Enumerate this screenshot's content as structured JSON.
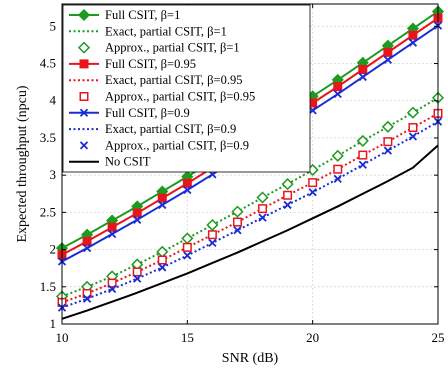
{
  "chart_data": {
    "type": "line",
    "xlabel": "SNR (dB)",
    "ylabel": "Expected throughput (npcu)",
    "xlim": [
      10,
      25
    ],
    "ylim": [
      1,
      5.3
    ],
    "x_ticks": [
      10,
      15,
      20,
      25
    ],
    "y_ticks": [
      1,
      1.5,
      2,
      2.5,
      3,
      3.5,
      4,
      4.5,
      5
    ],
    "grid": true,
    "legend_position": "top-left",
    "x": [
      10,
      11,
      12,
      13,
      14,
      15,
      16,
      17,
      18,
      19,
      20,
      21,
      22,
      23,
      24,
      25
    ],
    "series": [
      {
        "name": "Full CSIT, β=1",
        "color": "#1e9a1e",
        "style": "solid",
        "marker": "diamond",
        "values": [
          2.02,
          2.2,
          2.39,
          2.58,
          2.78,
          2.98,
          3.19,
          3.4,
          3.62,
          3.84,
          4.06,
          4.28,
          4.51,
          4.74,
          4.97,
          5.2
        ]
      },
      {
        "name": "Exact, partial CSIT, β=1",
        "color": "#1e9a1e",
        "style": "dotted",
        "marker": "none",
        "values": [
          1.37,
          1.5,
          1.64,
          1.8,
          1.97,
          2.15,
          2.33,
          2.51,
          2.7,
          2.88,
          3.07,
          3.26,
          3.46,
          3.65,
          3.84,
          4.04
        ]
      },
      {
        "name": "Approx., partial CSIT, β=1",
        "color": "#1e9a1e",
        "style": "none",
        "marker": "open-diamond",
        "values": [
          1.37,
          1.5,
          1.64,
          1.8,
          1.97,
          2.15,
          2.33,
          2.51,
          2.7,
          2.88,
          3.07,
          3.26,
          3.46,
          3.65,
          3.84,
          4.04
        ]
      },
      {
        "name": "Full CSIT, β=0.95",
        "color": "#e8161c",
        "style": "solid",
        "marker": "square",
        "values": [
          1.93,
          2.11,
          2.3,
          2.49,
          2.69,
          2.89,
          3.1,
          3.31,
          3.53,
          3.75,
          3.97,
          4.19,
          4.42,
          4.65,
          4.88,
          5.11
        ]
      },
      {
        "name": "Exact, partial CSIT, β=0.95",
        "color": "#e8161c",
        "style": "dotted",
        "marker": "none",
        "values": [
          1.29,
          1.41,
          1.55,
          1.7,
          1.86,
          2.03,
          2.2,
          2.37,
          2.55,
          2.73,
          2.9,
          3.08,
          3.27,
          3.45,
          3.64,
          3.83
        ]
      },
      {
        "name": "Approx., partial CSIT, β=0.95",
        "color": "#e8161c",
        "style": "none",
        "marker": "open-square",
        "values": [
          1.29,
          1.41,
          1.55,
          1.7,
          1.86,
          2.03,
          2.2,
          2.37,
          2.55,
          2.73,
          2.9,
          3.08,
          3.27,
          3.45,
          3.64,
          3.83
        ]
      },
      {
        "name": "Full CSIT, β=0.9",
        "color": "#1b2cd4",
        "style": "solid",
        "marker": "x",
        "values": [
          1.84,
          2.02,
          2.21,
          2.4,
          2.6,
          2.8,
          3.01,
          3.22,
          3.43,
          3.65,
          3.87,
          4.09,
          4.32,
          4.55,
          4.78,
          5.01
        ]
      },
      {
        "name": "Exact, partial CSIT, β=0.9",
        "color": "#1b2cd4",
        "style": "dotted",
        "marker": "none",
        "values": [
          1.22,
          1.34,
          1.47,
          1.61,
          1.76,
          1.92,
          2.09,
          2.26,
          2.43,
          2.6,
          2.77,
          2.95,
          3.14,
          3.33,
          3.52,
          3.72
        ]
      },
      {
        "name": "Approx., partial CSIT, β=0.9",
        "color": "#1b2cd4",
        "style": "none",
        "marker": "x",
        "values": [
          1.22,
          1.34,
          1.47,
          1.61,
          1.76,
          1.92,
          2.09,
          2.26,
          2.43,
          2.6,
          2.77,
          2.95,
          3.14,
          3.33,
          3.52,
          3.72
        ]
      },
      {
        "name": "No CSIT",
        "color": "#000000",
        "style": "solid",
        "marker": "none",
        "values": [
          1.07,
          1.18,
          1.3,
          1.42,
          1.55,
          1.68,
          1.82,
          1.96,
          2.11,
          2.26,
          2.42,
          2.58,
          2.75,
          2.92,
          3.1,
          3.4
        ]
      }
    ]
  }
}
